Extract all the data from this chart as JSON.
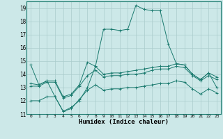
{
  "xlabel": "Humidex (Indice chaleur)",
  "ylabel": "",
  "xlim": [
    -0.5,
    23.5
  ],
  "ylim": [
    11,
    19.5
  ],
  "yticks": [
    11,
    12,
    13,
    14,
    15,
    16,
    17,
    18,
    19
  ],
  "xticks": [
    0,
    1,
    2,
    3,
    4,
    5,
    6,
    7,
    8,
    9,
    10,
    11,
    12,
    13,
    14,
    15,
    16,
    17,
    18,
    19,
    20,
    21,
    22,
    23
  ],
  "bg_color": "#cce8e8",
  "grid_color": "#aacccc",
  "line_color": "#1a7a6e",
  "lines": [
    {
      "x": [
        0,
        1,
        2,
        3,
        4,
        5,
        6,
        7,
        8,
        9,
        10,
        11,
        12,
        13,
        14,
        15,
        16,
        17,
        18,
        19,
        20,
        21,
        22,
        23
      ],
      "y": [
        14.7,
        13.2,
        13.5,
        12.3,
        11.2,
        11.5,
        12.0,
        13.0,
        14.6,
        17.4,
        17.4,
        17.3,
        17.4,
        19.2,
        18.9,
        18.8,
        18.8,
        16.3,
        14.8,
        14.7,
        14.0,
        13.6,
        14.1,
        13.0
      ]
    },
    {
      "x": [
        0,
        1,
        2,
        3,
        4,
        5,
        6,
        7,
        8,
        9,
        10,
        11,
        12,
        13,
        14,
        15,
        16,
        17,
        18,
        19,
        20,
        21,
        22,
        23
      ],
      "y": [
        13.3,
        13.2,
        13.5,
        13.5,
        12.3,
        12.5,
        13.2,
        14.9,
        14.6,
        14.0,
        14.1,
        14.1,
        14.2,
        14.3,
        14.4,
        14.5,
        14.6,
        14.6,
        14.8,
        14.7,
        14.0,
        13.6,
        14.1,
        13.8
      ]
    },
    {
      "x": [
        0,
        1,
        2,
        3,
        4,
        5,
        6,
        7,
        8,
        9,
        10,
        11,
        12,
        13,
        14,
        15,
        16,
        17,
        18,
        19,
        20,
        21,
        22,
        23
      ],
      "y": [
        13.1,
        13.1,
        13.4,
        13.4,
        12.2,
        12.4,
        13.1,
        13.9,
        14.3,
        13.8,
        13.9,
        13.9,
        14.0,
        14.0,
        14.1,
        14.3,
        14.4,
        14.4,
        14.6,
        14.5,
        13.9,
        13.5,
        13.9,
        13.6
      ]
    },
    {
      "x": [
        0,
        1,
        2,
        3,
        4,
        5,
        6,
        7,
        8,
        9,
        10,
        11,
        12,
        13,
        14,
        15,
        16,
        17,
        18,
        19,
        20,
        21,
        22,
        23
      ],
      "y": [
        12.0,
        12.0,
        12.3,
        12.3,
        11.2,
        11.4,
        12.1,
        12.8,
        13.2,
        12.8,
        12.9,
        12.9,
        13.0,
        13.0,
        13.1,
        13.2,
        13.3,
        13.3,
        13.5,
        13.4,
        12.9,
        12.5,
        12.9,
        12.6
      ]
    }
  ]
}
